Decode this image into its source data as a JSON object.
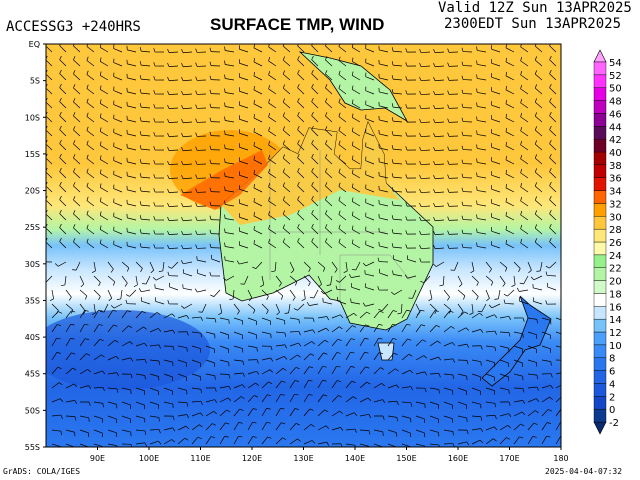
{
  "header": {
    "model": "ACCESSG3 +240HRS",
    "title": "SURFACE TMP, WIND",
    "valid_utc": "Valid 12Z Sun 13APR2025",
    "valid_local": "2300EDT Sun 13APR2025"
  },
  "map": {
    "lat_labels": [
      "EQ",
      "5S",
      "10S",
      "15S",
      "20S",
      "25S",
      "30S",
      "35S",
      "40S",
      "45S",
      "50S",
      "55S"
    ],
    "lon_labels": [
      "90E",
      "100E",
      "110E",
      "120E",
      "130E",
      "140E",
      "150E",
      "160E",
      "170E",
      "180"
    ],
    "lon_range": [
      90,
      180
    ],
    "lat_range": [
      0,
      -55
    ],
    "variable": "surface temperature (C) with wind barbs"
  },
  "colorbar": {
    "labels": [
      "-2",
      "0",
      "2",
      "4",
      "6",
      "8",
      "10",
      "12",
      "14",
      "16",
      "18",
      "20",
      "22",
      "24",
      "26",
      "28",
      "30",
      "32",
      "34",
      "36",
      "38",
      "40",
      "42",
      "44",
      "46",
      "48",
      "50",
      "52",
      "54"
    ],
    "colors": [
      "#0c3a8e",
      "#1446c8",
      "#1c58dc",
      "#2266e6",
      "#2a78f0",
      "#3a8af6",
      "#4aa0fa",
      "#78c2fa",
      "#c8e6ff",
      "#ffffff",
      "#d2fac8",
      "#b4f5a5",
      "#96f08c",
      "#fffaaa",
      "#ffe678",
      "#ffc83c",
      "#ffa000",
      "#ff6400",
      "#e11400",
      "#c00000",
      "#a50000",
      "#6e0028",
      "#5a0a5a",
      "#8c0096",
      "#be00be",
      "#e600e6",
      "#ff32ff",
      "#ff64ff"
    ],
    "low_arrow_color": "#0a2a6e",
    "high_arrow_color": "#ffa0ff"
  },
  "footer": {
    "credit": "GrADS: COLA/IGES",
    "timestamp": "2025-04-04-07:32"
  }
}
